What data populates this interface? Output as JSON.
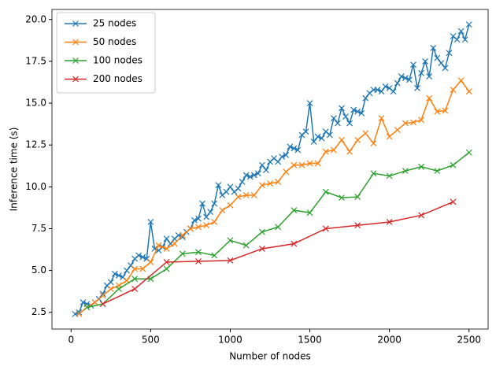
{
  "chart_data": {
    "type": "line",
    "xlabel": "Number of nodes",
    "ylabel": "Inference time (s)",
    "xlim": [
      -120,
      2620
    ],
    "ylim": [
      1.5,
      20.6
    ],
    "xticks": [
      0,
      500,
      1000,
      1500,
      2000,
      2500
    ],
    "yticks": [
      2.5,
      {
        "value": 5,
        "label": "5.0"
      },
      7.5,
      {
        "value": 10,
        "label": "10.0"
      },
      12.5,
      {
        "value": 15,
        "label": "15.0"
      },
      17.5,
      {
        "value": 20,
        "label": "20.0"
      }
    ],
    "legend": "upper left",
    "series": [
      {
        "name": "25 nodes",
        "color": "#1f77b4",
        "x": [
          25,
          50,
          75,
          100,
          125,
          150,
          175,
          200,
          225,
          250,
          275,
          300,
          325,
          350,
          375,
          400,
          425,
          450,
          475,
          500,
          525,
          550,
          575,
          600,
          625,
          650,
          675,
          700,
          725,
          750,
          775,
          800,
          825,
          850,
          875,
          900,
          925,
          950,
          975,
          1000,
          1025,
          1050,
          1075,
          1100,
          1125,
          1150,
          1175,
          1200,
          1225,
          1250,
          1275,
          1300,
          1325,
          1350,
          1375,
          1400,
          1425,
          1450,
          1475,
          1500,
          1525,
          1550,
          1575,
          1600,
          1625,
          1650,
          1675,
          1700,
          1725,
          1750,
          1775,
          1800,
          1825,
          1850,
          1875,
          1900,
          1925,
          1950,
          1975,
          2000,
          2025,
          2050,
          2075,
          2100,
          2125,
          2150,
          2175,
          2200,
          2225,
          2250,
          2275,
          2300,
          2325,
          2350,
          2375,
          2400,
          2425,
          2450,
          2475,
          2500
        ],
        "values": [
          2.4,
          2.5,
          3.1,
          3.0,
          2.9,
          3.1,
          3.3,
          3.6,
          4.1,
          4.3,
          4.8,
          4.7,
          4.6,
          5.0,
          5.3,
          5.7,
          5.9,
          5.8,
          5.7,
          7.9,
          6.3,
          6.2,
          6.4,
          6.9,
          6.6,
          6.9,
          7.1,
          7.0,
          7.3,
          7.5,
          8.0,
          8.1,
          9.0,
          8.2,
          8.5,
          9.0,
          10.1,
          9.5,
          9.7,
          10.0,
          9.7,
          9.9,
          10.3,
          10.7,
          10.6,
          10.7,
          10.8,
          11.3,
          11.0,
          11.5,
          11.7,
          11.5,
          11.8,
          11.9,
          12.4,
          12.3,
          12.2,
          13.1,
          13.3,
          15.0,
          12.7,
          13.0,
          12.9,
          13.3,
          13.1,
          14.1,
          13.8,
          14.7,
          14.2,
          13.8,
          14.6,
          14.5,
          14.4,
          15.3,
          15.6,
          15.8,
          15.8,
          15.7,
          16.0,
          15.9,
          15.7,
          16.2,
          16.6,
          16.5,
          16.4,
          17.3,
          15.9,
          16.8,
          17.5,
          16.6,
          18.3,
          17.7,
          17.4,
          17.1,
          18.0,
          19.0,
          18.8,
          19.3,
          18.8,
          19.7
        ]
      },
      {
        "name": "50 nodes",
        "color": "#ff7f0e",
        "x": [
          50,
          100,
          150,
          200,
          250,
          300,
          350,
          400,
          450,
          500,
          550,
          600,
          650,
          700,
          750,
          800,
          850,
          900,
          950,
          1000,
          1050,
          1100,
          1150,
          1200,
          1250,
          1300,
          1350,
          1400,
          1450,
          1500,
          1550,
          1600,
          1650,
          1700,
          1750,
          1800,
          1850,
          1900,
          1950,
          2000,
          2050,
          2100,
          2150,
          2200,
          2250,
          2300,
          2350,
          2400,
          2450,
          2500
        ],
        "values": [
          2.4,
          2.8,
          3.1,
          3.5,
          3.9,
          4.1,
          4.4,
          5.1,
          5.1,
          5.5,
          6.5,
          6.3,
          6.6,
          7.1,
          7.5,
          7.6,
          7.7,
          7.9,
          8.6,
          8.9,
          9.4,
          9.5,
          9.5,
          10.1,
          10.2,
          10.3,
          10.9,
          11.3,
          11.3,
          11.4,
          11.4,
          12.1,
          12.2,
          12.8,
          12.1,
          12.8,
          13.2,
          12.6,
          14.1,
          13.0,
          13.4,
          13.8,
          13.85,
          14.0,
          15.3,
          14.5,
          14.55,
          15.8,
          16.35,
          15.7
        ]
      },
      {
        "name": "100 nodes",
        "color": "#2ca02c",
        "x": [
          100,
          200,
          300,
          400,
          500,
          600,
          700,
          800,
          900,
          1000,
          1100,
          1200,
          1300,
          1400,
          1500,
          1600,
          1700,
          1800,
          1900,
          2000,
          2100,
          2200,
          2300,
          2400,
          2500
        ],
        "values": [
          2.8,
          3.0,
          3.9,
          4.5,
          4.5,
          5.1,
          6.0,
          6.1,
          5.9,
          6.8,
          6.5,
          7.3,
          7.6,
          8.6,
          8.45,
          9.7,
          9.35,
          9.4,
          10.8,
          10.65,
          10.95,
          11.2,
          10.95,
          11.3,
          12.05
        ]
      },
      {
        "name": "200 nodes",
        "color": "#d62728",
        "x": [
          200,
          400,
          600,
          800,
          1000,
          1200,
          1400,
          1600,
          1800,
          2000,
          2200,
          2400
        ],
        "values": [
          3.0,
          3.9,
          5.5,
          5.55,
          5.6,
          6.3,
          6.6,
          7.5,
          7.7,
          7.9,
          8.3,
          9.1
        ]
      }
    ]
  }
}
